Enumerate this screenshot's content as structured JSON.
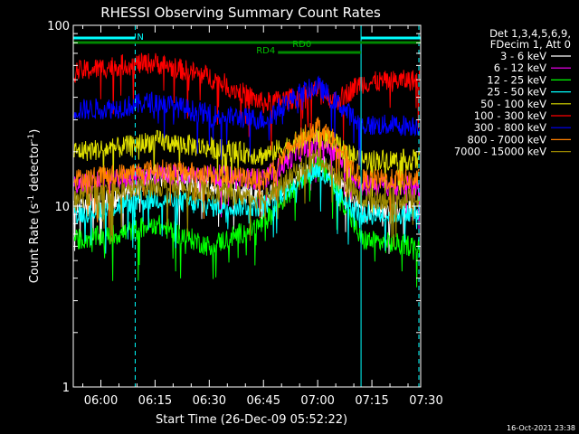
{
  "chart_data": {
    "type": "line",
    "title": "RHESSI Observing Summary Count Rates",
    "xlabel": "Start Time (26-Dec-09 05:52:22)",
    "ylabel": "Count Rate (s",
    "ylabel_sup": "-1",
    "ylabel_tail": " detector",
    "ylabel_close": ")",
    "yscale": "log",
    "ylim": [
      1,
      100
    ],
    "xlim": [
      "05:52:22",
      "07:28:30"
    ],
    "x_ticks": [
      "06:00",
      "06:15",
      "06:30",
      "06:45",
      "07:00",
      "07:15",
      "07:30"
    ],
    "y_ticks": [
      "1",
      "10",
      "100"
    ],
    "legend": {
      "placement": "right",
      "header1": "Det 1,3,4,5,6,9,",
      "header2": "FDecim 1, Att 0"
    },
    "series": [
      {
        "name": "3 - 6 keV",
        "color": "#ffffff",
        "x": [
          "05:52",
          "06:05",
          "06:15",
          "06:30",
          "06:45",
          "06:55",
          "07:00",
          "07:05",
          "07:12",
          "07:28"
        ],
        "values": [
          10,
          11,
          15,
          13,
          11,
          15,
          18,
          14,
          9.5,
          9.5
        ]
      },
      {
        "name": "6 - 12 keV",
        "color": "#ff00ff",
        "x": [
          "05:52",
          "06:05",
          "06:15",
          "06:30",
          "06:45",
          "06:55",
          "07:00",
          "07:05",
          "07:12",
          "07:28"
        ],
        "values": [
          13,
          14,
          15,
          15,
          14,
          20,
          23,
          20,
          13,
          13
        ]
      },
      {
        "name": "12 - 25 keV",
        "color": "#00ff00",
        "x": [
          "05:52",
          "06:05",
          "06:15",
          "06:30",
          "06:45",
          "06:55",
          "07:00",
          "07:05",
          "07:12",
          "07:28"
        ],
        "values": [
          6.5,
          7,
          8,
          6,
          8,
          14,
          17,
          13,
          6.5,
          6
        ]
      },
      {
        "name": "25 - 50 keV",
        "color": "#00ffff",
        "x": [
          "05:52",
          "06:05",
          "06:15",
          "06:30",
          "06:45",
          "06:55",
          "07:00",
          "07:05",
          "07:12",
          "07:28"
        ],
        "values": [
          9,
          10,
          11,
          10,
          10,
          14,
          16,
          12,
          9,
          9
        ]
      },
      {
        "name": "50 - 100 keV",
        "color": "#e0e000",
        "x": [
          "05:52",
          "06:05",
          "06:15",
          "06:30",
          "06:45",
          "06:55",
          "07:00",
          "07:05",
          "07:12",
          "07:28"
        ],
        "values": [
          20,
          21,
          23,
          21,
          19,
          23,
          25,
          22,
          18,
          18
        ]
      },
      {
        "name": "100 - 300 keV",
        "color": "#ff0000",
        "x": [
          "05:52",
          "06:05",
          "06:15",
          "06:30",
          "06:45",
          "06:55",
          "07:00",
          "07:05",
          "07:12",
          "07:28"
        ],
        "values": [
          55,
          60,
          62,
          52,
          37,
          40,
          44,
          38,
          48,
          50
        ]
      },
      {
        "name": "300 - 800 keV",
        "color": "#0000ff",
        "x": [
          "05:52",
          "06:05",
          "06:15",
          "06:30",
          "06:45",
          "06:55",
          "07:00",
          "07:05",
          "07:12",
          "07:28"
        ],
        "values": [
          34,
          35,
          38,
          32,
          30,
          42,
          46,
          38,
          28,
          28
        ]
      },
      {
        "name": "800 - 7000 keV",
        "color": "#ff8000",
        "x": [
          "05:52",
          "06:05",
          "06:15",
          "06:30",
          "06:45",
          "06:55",
          "07:00",
          "07:05",
          "07:12",
          "07:28"
        ],
        "values": [
          14,
          15,
          16,
          15,
          14,
          24,
          28,
          23,
          14,
          14
        ]
      },
      {
        "name": "7000 - 15000 keV",
        "color": "#9b8800",
        "x": [
          "05:52",
          "06:05",
          "06:15",
          "06:30",
          "06:45",
          "06:55",
          "07:00",
          "07:05",
          "07:12",
          "07:28"
        ],
        "values": [
          11,
          12,
          13,
          12,
          11,
          16,
          19,
          15,
          11,
          11
        ]
      }
    ],
    "annotations": [
      {
        "text": "N",
        "color": "#00ffff",
        "x": "06:10"
      },
      {
        "text": "RD4",
        "color": "#00c000",
        "x": "06:48"
      },
      {
        "text": "RD0",
        "color": "#00c000",
        "x": "06:53"
      }
    ],
    "vlines_cyan": [
      "05:52:22",
      "06:09:30",
      "07:12:00",
      "07:28:00"
    ],
    "footer_timestamp": "16-Oct-2021 23:38"
  }
}
